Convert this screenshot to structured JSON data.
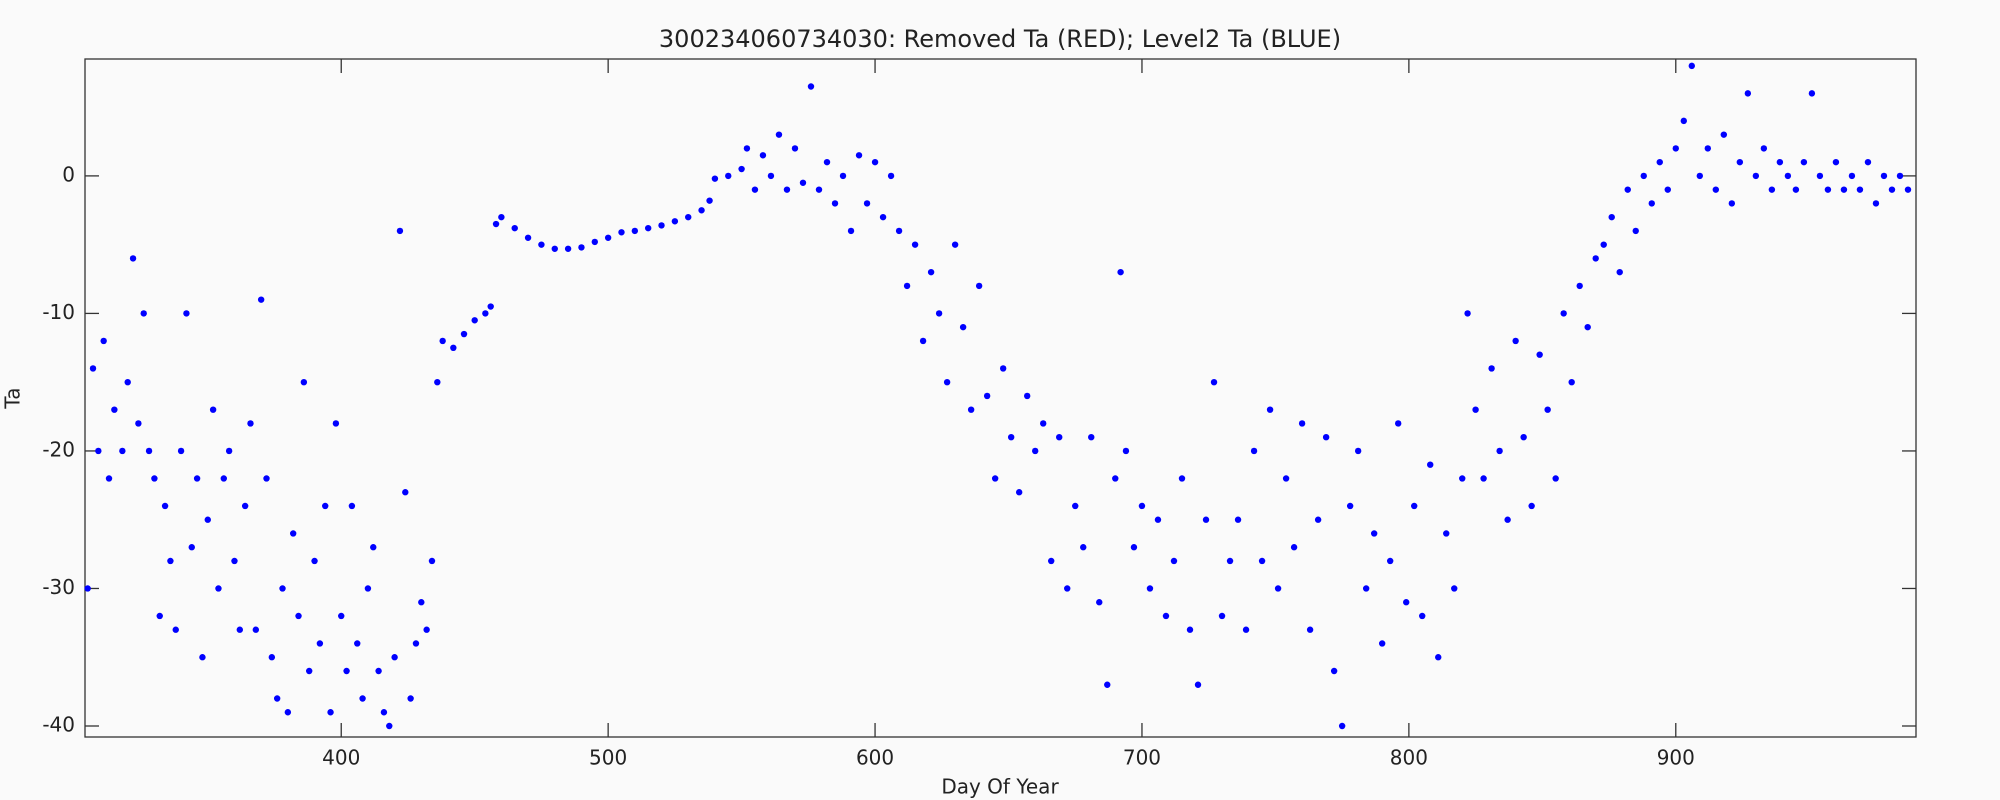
{
  "chart_data": {
    "type": "scatter",
    "title": "300234060734030: Removed Ta (RED); Level2 Ta (BLUE)",
    "x_label": "Day Of Year",
    "y_label": "Ta",
    "xlim": [
      304,
      990
    ],
    "ylim": [
      -40.8,
      8.5
    ],
    "xticks": [
      400,
      500,
      600,
      700,
      800,
      900
    ],
    "yticks": [
      -40,
      -30,
      -20,
      -10,
      0
    ],
    "series": [
      {
        "color": "#0000ff",
        "x": [
          305,
          307,
          309,
          311,
          313,
          315,
          318,
          320,
          322,
          324,
          326,
          328,
          330,
          332,
          334,
          336,
          338,
          340,
          342,
          344,
          346,
          348,
          350,
          352,
          354,
          356,
          358,
          360,
          362,
          364,
          366,
          368,
          370,
          372,
          374,
          376,
          378,
          380,
          382,
          384,
          386,
          388,
          390,
          392,
          394,
          396,
          398,
          400,
          402,
          404,
          406,
          408,
          410,
          412,
          414,
          416,
          418,
          420,
          422,
          424,
          426,
          428,
          430,
          432,
          434,
          436,
          438,
          442,
          446,
          450,
          454,
          456,
          458,
          460,
          465,
          470,
          475,
          480,
          485,
          490,
          495,
          500,
          505,
          510,
          515,
          520,
          525,
          530,
          535,
          538,
          540,
          545,
          550,
          552,
          555,
          558,
          561,
          564,
          567,
          570,
          573,
          576,
          579,
          582,
          585,
          588,
          591,
          594,
          597,
          600,
          603,
          606,
          609,
          612,
          615,
          618,
          621,
          624,
          627,
          630,
          633,
          636,
          639,
          642,
          645,
          648,
          651,
          654,
          657,
          660,
          663,
          666,
          669,
          672,
          675,
          678,
          681,
          684,
          687,
          690,
          692,
          694,
          697,
          700,
          703,
          706,
          709,
          712,
          715,
          718,
          721,
          724,
          727,
          730,
          733,
          736,
          739,
          742,
          745,
          748,
          751,
          754,
          757,
          760,
          763,
          766,
          769,
          772,
          775,
          778,
          781,
          784,
          787,
          790,
          793,
          796,
          799,
          802,
          805,
          808,
          811,
          814,
          817,
          820,
          822,
          825,
          828,
          831,
          834,
          837,
          840,
          843,
          846,
          849,
          852,
          855,
          858,
          861,
          864,
          867,
          870,
          873,
          876,
          879,
          882,
          885,
          888,
          891,
          894,
          897,
          900,
          903,
          906,
          909,
          912,
          915,
          918,
          921,
          924,
          927,
          930,
          933,
          936,
          939,
          942,
          945,
          948,
          951,
          954,
          957,
          960,
          963,
          966,
          969,
          972,
          975,
          978,
          981,
          984,
          987
        ],
        "y": [
          -30,
          -14,
          -20,
          -12,
          -22,
          -17,
          -20,
          -15,
          -6,
          -18,
          -10,
          -20,
          -22,
          -32,
          -24,
          -28,
          -33,
          -20,
          -10,
          -27,
          -22,
          -35,
          -25,
          -17,
          -30,
          -22,
          -20,
          -28,
          -33,
          -24,
          -18,
          -33,
          -9,
          -22,
          -35,
          -38,
          -30,
          -39,
          -26,
          -32,
          -15,
          -36,
          -28,
          -34,
          -24,
          -39,
          -18,
          -32,
          -36,
          -24,
          -34,
          -38,
          -30,
          -27,
          -36,
          -39,
          -40,
          -35,
          -4,
          -23,
          -38,
          -34,
          -31,
          -33,
          -28,
          -15,
          -12,
          -12.5,
          -11.5,
          -10.5,
          -10,
          -9.5,
          -3.5,
          -3,
          -3.8,
          -4.5,
          -5,
          -5.3,
          -5.3,
          -5.2,
          -4.8,
          -4.5,
          -4.1,
          -4,
          -3.8,
          -3.6,
          -3.3,
          -3,
          -2.5,
          -1.8,
          -0.2,
          0,
          0.5,
          2,
          -1,
          1.5,
          0,
          3,
          -1,
          2,
          -0.5,
          6.5,
          -1,
          1,
          -2,
          0,
          -4,
          1.5,
          -2,
          1,
          -3,
          0,
          -4,
          -8,
          -5,
          -12,
          -7,
          -10,
          -15,
          -5,
          -11,
          -17,
          -8,
          -16,
          -22,
          -14,
          -19,
          -23,
          -16,
          -20,
          -18,
          -28,
          -19,
          -30,
          -24,
          -27,
          -19,
          -31,
          -37,
          -22,
          -7,
          -20,
          -27,
          -24,
          -30,
          -25,
          -32,
          -28,
          -22,
          -33,
          -37,
          -25,
          -15,
          -32,
          -28,
          -25,
          -33,
          -20,
          -28,
          -17,
          -30,
          -22,
          -27,
          -18,
          -33,
          -25,
          -19,
          -36,
          -40,
          -24,
          -20,
          -30,
          -26,
          -34,
          -28,
          -18,
          -31,
          -24,
          -32,
          -21,
          -35,
          -26,
          -30,
          -22,
          -10,
          -17,
          -22,
          -14,
          -20,
          -25,
          -12,
          -19,
          -24,
          -13,
          -17,
          -22,
          -10,
          -15,
          -8,
          -11,
          -6,
          -5,
          -3,
          -7,
          -1,
          -4,
          0,
          -2,
          1,
          -1,
          2,
          4,
          8,
          0,
          2,
          -1,
          3,
          -2,
          1,
          6,
          0,
          2,
          -1,
          1,
          0,
          -1,
          1,
          6,
          0,
          -1,
          1,
          -1,
          0,
          -1,
          1,
          -2,
          0,
          -1,
          0,
          -1
        ]
      }
    ]
  }
}
